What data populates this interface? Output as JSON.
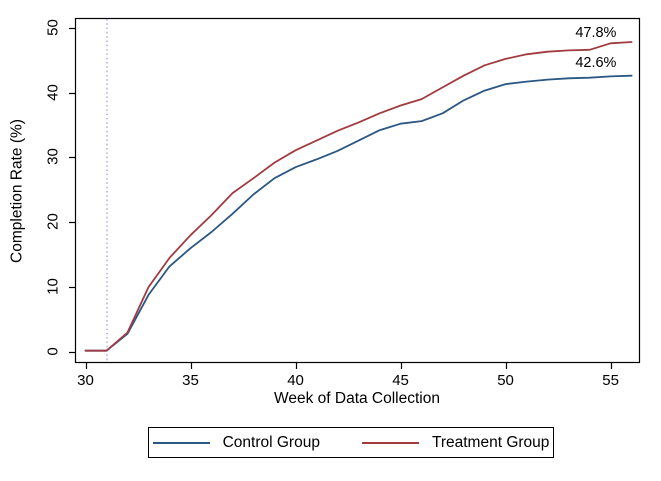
{
  "chart_data": {
    "type": "line",
    "title": "",
    "xlabel": "Week of Data Collection",
    "ylabel": "Completion Rate (%)",
    "x": [
      30,
      31,
      32,
      33,
      34,
      35,
      36,
      37,
      38,
      39,
      40,
      41,
      42,
      43,
      44,
      45,
      46,
      47,
      48,
      49,
      50,
      51,
      52,
      53,
      54,
      55,
      56
    ],
    "series": [
      {
        "name": "Control Group",
        "color": "#2a5783",
        "values": [
          0.2,
          0.2,
          2.8,
          8.8,
          13.2,
          16.0,
          18.5,
          21.3,
          24.3,
          26.8,
          28.5,
          29.7,
          31.0,
          32.6,
          34.2,
          35.2,
          35.6,
          36.8,
          38.8,
          40.3,
          41.3,
          41.7,
          42.0,
          42.2,
          42.3,
          42.5,
          42.6
        ]
      },
      {
        "name": "Treatment Group",
        "color": "#a03b40",
        "values": [
          0.2,
          0.2,
          3.0,
          10.0,
          14.5,
          18.0,
          21.1,
          24.5,
          26.8,
          29.2,
          31.1,
          32.6,
          34.1,
          35.4,
          36.8,
          38.0,
          39.0,
          40.8,
          42.6,
          44.2,
          45.2,
          45.9,
          46.3,
          46.5,
          46.6,
          47.6,
          47.8
        ]
      }
    ],
    "x_ticks": [
      30,
      35,
      40,
      45,
      50,
      55
    ],
    "y_ticks": [
      0,
      10,
      20,
      30,
      40,
      50
    ],
    "xlim": [
      29.5,
      56.4
    ],
    "ylim": [
      -1.7,
      51.5
    ],
    "grid": false,
    "legend_position": "bottom",
    "reference_line": {
      "x": 31,
      "style": "dotted",
      "color": "#7f84d9"
    },
    "annotations": [
      {
        "text": "47.8%",
        "x": 54.3,
        "y": 49.2
      },
      {
        "text": "42.6%",
        "x": 54.3,
        "y": 44.6
      }
    ],
    "frame_color": "#000000",
    "background_color": "#ffffff"
  }
}
